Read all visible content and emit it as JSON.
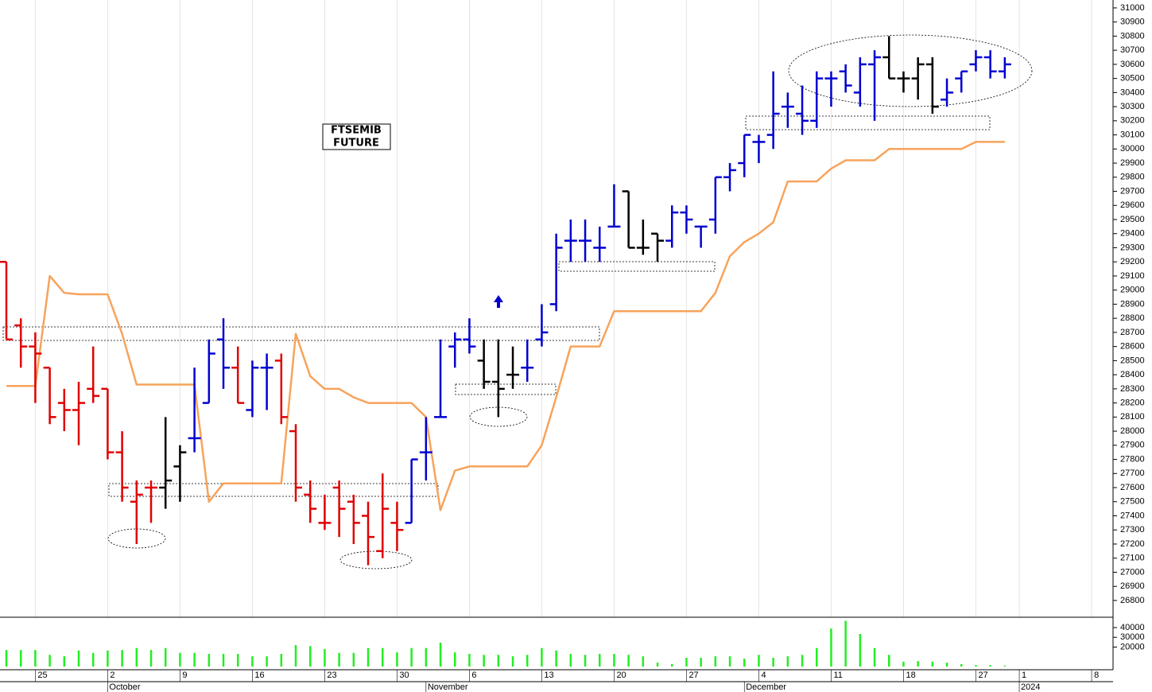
{
  "chart_data": [
    {
      "type": "ohlc",
      "title": [
        "FTSEMIB",
        "FUTURE"
      ],
      "categories": [
        null,
        null,
        null,
        null,
        null,
        null,
        null,
        null,
        null,
        null,
        null,
        null,
        null,
        null,
        null,
        null,
        null,
        null,
        null,
        null,
        null,
        null,
        null,
        null,
        null,
        null,
        null,
        null,
        null,
        null,
        null,
        null,
        null,
        null,
        null,
        null,
        null,
        null,
        null,
        null,
        null,
        null,
        null,
        null,
        null,
        null,
        null,
        null,
        null,
        null,
        null,
        null,
        null,
        null,
        null,
        null,
        null,
        null,
        null,
        null,
        null,
        null,
        null,
        null,
        null,
        null,
        null,
        null,
        null,
        null
      ],
      "open": [
        29200,
        28750,
        28600,
        28450,
        28200,
        28150,
        28300,
        28300,
        27850,
        27500,
        27600,
        27600,
        27750,
        27950,
        28200,
        28650,
        28450,
        28150,
        28450,
        28500,
        28000,
        27550,
        27350,
        27600,
        27500,
        27400,
        27150,
        27350,
        27350,
        27850,
        28100,
        28600,
        28650,
        28500,
        28350,
        28400,
        28450,
        28650,
        28900,
        29350,
        29350,
        29300,
        29450,
        29700,
        29300,
        29400,
        29350,
        29550,
        29450,
        29500,
        29800,
        29900,
        30050,
        30100,
        30300,
        30250,
        30200,
        30500,
        30550,
        30400,
        30600,
        30650,
        30500,
        30500,
        30600,
        30350,
        30500,
        30600,
        30650,
        30550
      ],
      "high": [
        29200,
        28800,
        28700,
        28450,
        28300,
        28350,
        28600,
        28300,
        28000,
        27650,
        27650,
        28100,
        27900,
        28450,
        28650,
        28800,
        28600,
        28500,
        28550,
        28550,
        28050,
        27650,
        27550,
        27650,
        27550,
        27500,
        27700,
        27500,
        27800,
        28100,
        28650,
        28700,
        28800,
        28650,
        28650,
        28600,
        28650,
        28900,
        29400,
        29500,
        29500,
        29450,
        29750,
        29700,
        29500,
        29400,
        29600,
        29600,
        29450,
        29800,
        29900,
        30100,
        30100,
        30550,
        30400,
        30450,
        30550,
        30550,
        30600,
        30650,
        30700,
        30800,
        30550,
        30650,
        30650,
        30500,
        30550,
        30700,
        30700,
        30650
      ],
      "low": [
        28650,
        28450,
        28200,
        28050,
        28000,
        27900,
        28200,
        27800,
        27500,
        27200,
        27350,
        27450,
        27500,
        27850,
        28200,
        28300,
        28200,
        28100,
        28150,
        28050,
        27500,
        27350,
        27300,
        27250,
        27200,
        27050,
        27100,
        27150,
        27350,
        27650,
        28100,
        28450,
        28550,
        28300,
        28100,
        28300,
        28350,
        28600,
        28850,
        29200,
        29200,
        29200,
        29450,
        29300,
        29250,
        29200,
        29300,
        29400,
        29300,
        29400,
        29700,
        29800,
        29900,
        30000,
        30150,
        30100,
        30150,
        30300,
        30400,
        30300,
        30200,
        30500,
        30400,
        30350,
        30250,
        30300,
        30400,
        30550,
        30500,
        30500
      ],
      "close": [
        28650,
        28600,
        28550,
        28100,
        28150,
        28200,
        28250,
        27850,
        27600,
        27550,
        27600,
        27650,
        27850,
        27950,
        28550,
        28450,
        28200,
        28450,
        28450,
        28100,
        27600,
        27450,
        27350,
        27450,
        27350,
        27250,
        27450,
        27300,
        27800,
        27850,
        28100,
        28650,
        28600,
        28350,
        28300,
        28400,
        28450,
        28700,
        29300,
        29350,
        29350,
        29300,
        29450,
        29300,
        29300,
        29350,
        29550,
        29500,
        29450,
        29800,
        29850,
        30100,
        30050,
        30250,
        30300,
        30200,
        30500,
        30500,
        30450,
        30600,
        30650,
        30500,
        30500,
        30600,
        30300,
        30400,
        30550,
        30650,
        30550,
        30600
      ],
      "colors": [
        "#e00000",
        "#e00000",
        "#e00000",
        "#e00000",
        "#e00000",
        "#e00000",
        "#e00000",
        "#e00000",
        "#e00000",
        "#e00000",
        "#e00000",
        "#000000",
        "#000000",
        "#0000d0",
        "#0000d0",
        "#0000d0",
        "#e00000",
        "#0000d0",
        "#0000d0",
        "#e00000",
        "#e00000",
        "#e00000",
        "#e00000",
        "#e00000",
        "#e00000",
        "#e00000",
        "#e00000",
        "#e00000",
        "#0000d0",
        "#0000d0",
        "#0000d0",
        "#0000d0",
        "#0000d0",
        "#000000",
        "#000000",
        "#000000",
        "#0000d0",
        "#0000d0",
        "#0000d0",
        "#0000d0",
        "#0000d0",
        "#0000d0",
        "#0000d0",
        "#000000",
        "#000000",
        "#000000",
        "#0000d0",
        "#0000d0",
        "#0000d0",
        "#0000d0",
        "#0000d0",
        "#0000d0",
        "#0000d0",
        "#0000d0",
        "#0000d0",
        "#0000d0",
        "#0000d0",
        "#0000d0",
        "#0000d0",
        "#0000d0",
        "#0000d0",
        "#000000",
        "#000000",
        "#000000",
        "#000000",
        "#0000d0",
        "#0000d0",
        "#0000d0",
        "#0000d0",
        "#0000d0"
      ],
      "line": {
        "color": "#f7a35c",
        "values": [
          28320,
          28320,
          28320,
          29100,
          28980,
          28970,
          28970,
          28970,
          28690,
          28330,
          28330,
          28330,
          28330,
          28330,
          27500,
          27630,
          27630,
          27630,
          27630,
          27630,
          28690,
          28390,
          28300,
          28300,
          28240,
          28200,
          28200,
          28200,
          28200,
          28100,
          27440,
          27720,
          27750,
          27750,
          27750,
          27750,
          27750,
          27900,
          28240,
          28600,
          28600,
          28600,
          28850,
          28850,
          28850,
          28850,
          28850,
          28850,
          28850,
          28980,
          29240,
          29340,
          29400,
          29480,
          29770,
          29770,
          29770,
          29860,
          29920,
          29920,
          29920,
          30000,
          30000,
          30000,
          30000,
          30000,
          30000,
          30050,
          30050,
          30050
        ]
      },
      "xlim": [
        -0.44,
        76.48
      ],
      "ylim": [
        26715,
        31056
      ],
      "yticks": [
        26800,
        26900,
        27000,
        27100,
        27200,
        27300,
        27400,
        27500,
        27600,
        27700,
        27800,
        27900,
        28000,
        28100,
        28200,
        28300,
        28400,
        28500,
        28600,
        28700,
        28800,
        28900,
        29000,
        29100,
        29200,
        29300,
        29400,
        29500,
        29600,
        29700,
        29800,
        29900,
        30000,
        30100,
        30200,
        30300,
        30400,
        30500,
        30600,
        30700,
        30800,
        30900,
        31000
      ],
      "grid": true
    },
    {
      "type": "bar",
      "categories": [
        null,
        null,
        null,
        null,
        null,
        null,
        null,
        null,
        null,
        null,
        null,
        null,
        null,
        null,
        null,
        null,
        null,
        null,
        null,
        null,
        null,
        null,
        null,
        null,
        null,
        null,
        null,
        null,
        null,
        null,
        null,
        null,
        null,
        null,
        null,
        null,
        null,
        null,
        null,
        null,
        null,
        null,
        null,
        null,
        null,
        null,
        null,
        null,
        null,
        null,
        null,
        null,
        null,
        null,
        null,
        null,
        null,
        null,
        null,
        null,
        null,
        null,
        null,
        null,
        null,
        null,
        null,
        null,
        null,
        null
      ],
      "values": [
        17000,
        17000,
        17000,
        12000,
        10500,
        16500,
        14000,
        16500,
        17000,
        19000,
        17000,
        19000,
        14000,
        14000,
        13000,
        13000,
        13000,
        10500,
        10500,
        13000,
        22000,
        21000,
        18000,
        14000,
        14000,
        19000,
        19000,
        14500,
        19000,
        19000,
        24500,
        14500,
        13000,
        12000,
        12000,
        10500,
        12000,
        19000,
        16500,
        13000,
        12000,
        13000,
        13000,
        12000,
        10500,
        4000,
        2500,
        9000,
        9000,
        10500,
        10500,
        8000,
        12000,
        9000,
        10500,
        12000,
        19000,
        39000,
        47000,
        33500,
        19000,
        12000,
        5000,
        5500,
        5000,
        4000,
        2500,
        1500,
        1500,
        1000
      ],
      "color": "#22ee22",
      "ylim": [
        0,
        50600
      ],
      "yticks": [
        20000,
        30000,
        40000
      ],
      "xlim": [
        -0.44,
        76.48
      ],
      "xticks": [
        {
          "value": 2,
          "label": "25"
        },
        {
          "value": 7,
          "label": "2"
        },
        {
          "value": 12,
          "label": "9"
        },
        {
          "value": 17,
          "label": "16"
        },
        {
          "value": 22,
          "label": "23"
        },
        {
          "value": 27,
          "label": "30"
        },
        {
          "value": 32,
          "label": "6"
        },
        {
          "value": 37,
          "label": "13"
        },
        {
          "value": 42,
          "label": "20"
        },
        {
          "value": 47,
          "label": "27"
        },
        {
          "value": 52,
          "label": "4"
        },
        {
          "value": 57,
          "label": "11"
        },
        {
          "value": 62,
          "label": "18"
        },
        {
          "value": 67,
          "label": "27"
        },
        {
          "value": 70,
          "label": "1"
        },
        {
          "value": 75,
          "label": "8"
        }
      ],
      "month_ticks": [
        {
          "value": 7,
          "label": "October"
        },
        {
          "value": 29,
          "label": "November"
        },
        {
          "value": 51,
          "label": "December"
        },
        {
          "value": 70,
          "label": "2024"
        }
      ]
    }
  ]
}
